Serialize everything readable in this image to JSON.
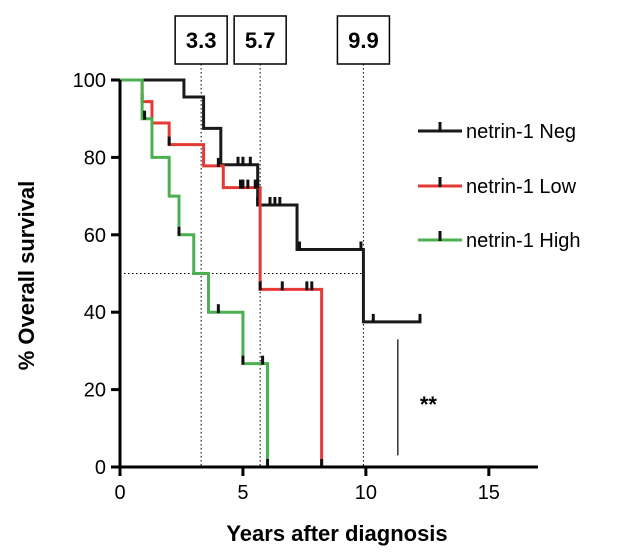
{
  "chart_data": {
    "type": "line",
    "subtype": "kaplan-meier step",
    "xlabel": "Years after diagnosis",
    "ylabel": "% Overall survival",
    "xlim": [
      0,
      17
    ],
    "ylim": [
      0,
      100
    ],
    "xticks": [
      0,
      5,
      10,
      15
    ],
    "yticks": [
      0,
      20,
      40,
      60,
      80,
      100
    ],
    "grid": false,
    "legend_position": "right",
    "reference_line_y": 50,
    "median_markers": [
      {
        "x": 3.3,
        "label": "3.3"
      },
      {
        "x": 5.7,
        "label": "5.7"
      },
      {
        "x": 9.9,
        "label": "9.9"
      }
    ],
    "significance": {
      "x": 11.3,
      "label": "**",
      "y_range": [
        3,
        33
      ]
    },
    "series": [
      {
        "name": "netrin-1 Neg",
        "color": "#1a1a1a",
        "steps": [
          [
            0,
            100
          ],
          [
            2.6,
            95.6
          ],
          [
            3.4,
            87.5
          ],
          [
            4.1,
            78.1
          ],
          [
            5.6,
            67.7
          ],
          [
            7.2,
            56.2
          ],
          [
            9.9,
            37.5
          ],
          [
            12.2,
            37.5
          ]
        ],
        "censor_x": [
          4.8,
          5.0,
          5.3,
          5.6,
          6.1,
          6.3,
          6.5,
          7.3,
          9.8,
          10.3,
          12.2
        ]
      },
      {
        "name": "netrin-1 Low",
        "color": "#e53935",
        "steps": [
          [
            0,
            100
          ],
          [
            0.9,
            94.4
          ],
          [
            1.3,
            88.9
          ],
          [
            2.0,
            83.3
          ],
          [
            3.4,
            77.8
          ],
          [
            4.2,
            72.2
          ],
          [
            5.7,
            45.9
          ],
          [
            8.2,
            0
          ]
        ],
        "censor_x": [
          0.9,
          2.0,
          4.0,
          4.9,
          5.0,
          5.2,
          5.5,
          5.6,
          5.7,
          6.6,
          7.6,
          7.8,
          8.2
        ]
      },
      {
        "name": "netrin-1 High",
        "color": "#4caf50",
        "steps": [
          [
            0,
            100
          ],
          [
            0.9,
            90
          ],
          [
            1.3,
            80
          ],
          [
            2.0,
            70
          ],
          [
            2.4,
            60
          ],
          [
            3.0,
            50
          ],
          [
            3.6,
            40
          ],
          [
            5.0,
            26.7
          ],
          [
            6.0,
            0
          ]
        ],
        "censor_x": [
          1.0,
          2.4,
          4.0,
          5.0,
          5.8,
          6.0
        ]
      }
    ]
  }
}
